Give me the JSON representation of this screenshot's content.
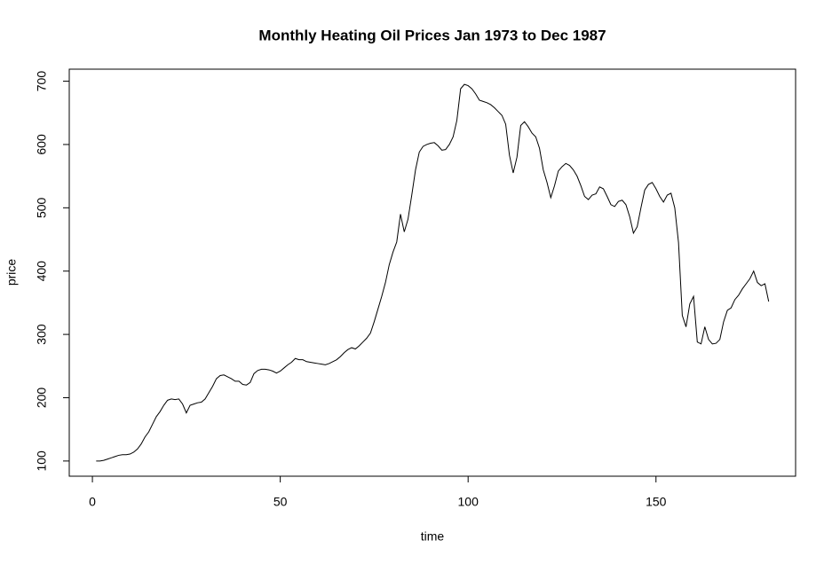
{
  "chart_data": {
    "type": "line",
    "title": "Monthly Heating Oil Prices Jan 1973 to Dec 1987",
    "x_label": "time",
    "y_label": "price",
    "x": [
      1,
      2,
      3,
      4,
      5,
      6,
      7,
      8,
      9,
      10,
      11,
      12,
      13,
      14,
      15,
      16,
      17,
      18,
      19,
      20,
      21,
      22,
      23,
      24,
      25,
      26,
      27,
      28,
      29,
      30,
      31,
      32,
      33,
      34,
      35,
      36,
      37,
      38,
      39,
      40,
      41,
      42,
      43,
      44,
      45,
      46,
      47,
      48,
      49,
      50,
      51,
      52,
      53,
      54,
      55,
      56,
      57,
      58,
      59,
      60,
      61,
      62,
      63,
      64,
      65,
      66,
      67,
      68,
      69,
      70,
      71,
      72,
      73,
      74,
      75,
      76,
      77,
      78,
      79,
      80,
      81,
      82,
      83,
      84,
      85,
      86,
      87,
      88,
      89,
      90,
      91,
      92,
      93,
      94,
      95,
      96,
      97,
      98,
      99,
      100,
      101,
      102,
      103,
      104,
      105,
      106,
      107,
      108,
      109,
      110,
      111,
      112,
      113,
      114,
      115,
      116,
      117,
      118,
      119,
      120,
      121,
      122,
      123,
      124,
      125,
      126,
      127,
      128,
      129,
      130,
      131,
      132,
      133,
      134,
      135,
      136,
      137,
      138,
      139,
      140,
      141,
      142,
      143,
      144,
      145,
      146,
      147,
      148,
      149,
      150,
      151,
      152,
      153,
      154,
      155,
      156,
      157,
      158,
      159,
      160,
      161,
      162,
      163,
      164,
      165,
      166,
      167,
      168,
      169,
      170,
      171,
      172,
      173,
      174,
      175,
      176,
      177,
      178,
      179,
      180
    ],
    "series": [
      {
        "color": "#000000",
        "values": [
          100,
          100,
          101,
          103,
          105,
          107,
          109,
          110,
          110,
          111,
          114,
          119,
          127,
          138,
          146,
          158,
          170,
          178,
          188,
          196,
          198,
          197,
          198,
          190,
          176,
          188,
          190,
          192,
          193,
          198,
          208,
          218,
          230,
          235,
          236,
          233,
          230,
          226,
          226,
          221,
          220,
          224,
          238,
          243,
          245,
          245,
          244,
          242,
          239,
          242,
          247,
          252,
          256,
          262,
          260,
          260,
          257,
          256,
          255,
          254,
          253,
          252,
          254,
          257,
          260,
          265,
          271,
          276,
          279,
          277,
          282,
          288,
          294,
          302,
          320,
          340,
          360,
          382,
          410,
          430,
          446,
          490,
          462,
          482,
          520,
          560,
          588,
          597,
          600,
          602,
          603,
          598,
          591,
          592,
          600,
          612,
          638,
          688,
          695,
          693,
          688,
          680,
          670,
          668,
          666,
          663,
          658,
          652,
          646,
          632,
          583,
          555,
          580,
          630,
          636,
          628,
          618,
          612,
          594,
          560,
          540,
          516,
          535,
          558,
          565,
          570,
          567,
          560,
          550,
          535,
          518,
          513,
          520,
          522,
          533,
          530,
          518,
          505,
          502,
          510,
          512,
          505,
          486,
          460,
          470,
          500,
          528,
          537,
          540,
          530,
          518,
          509,
          520,
          523,
          500,
          445,
          330,
          312,
          348,
          360,
          288,
          285,
          312,
          292,
          285,
          286,
          292,
          320,
          338,
          342,
          355,
          362,
          372,
          380,
          388,
          400,
          382,
          377,
          380,
          352
        ]
      }
    ],
    "xlim": [
      -6.16,
      187.16
    ],
    "ylim": [
      76,
      719
    ],
    "xticks": [
      0,
      50,
      100,
      150
    ],
    "yticks": [
      100,
      200,
      300,
      400,
      500,
      600,
      700
    ]
  }
}
